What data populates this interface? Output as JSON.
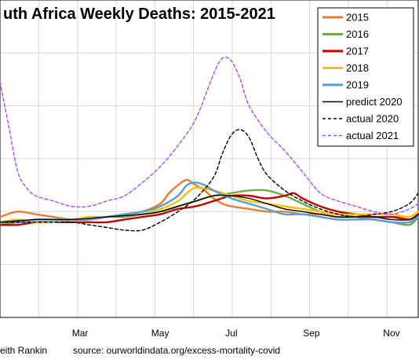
{
  "chart_data": {
    "type": "line",
    "title": "uth Africa Weekly Deaths: 2015-2021",
    "x_ticks": [
      "Mar",
      "May",
      "Jul",
      "Sep",
      "Nov"
    ],
    "x_tick_weeks": [
      9,
      18,
      26,
      35,
      44
    ],
    "xlim": [
      0,
      47
    ],
    "ylim": [
      0,
      12
    ],
    "grid": true,
    "legend_position": "top-right",
    "legend": [
      "2015",
      "2016",
      "2017",
      "2018",
      "2019",
      "predict 2020",
      "actual 2020",
      "actual 2021"
    ],
    "series": [
      {
        "name": "2015",
        "color": "#ED7D31",
        "style": "solid",
        "x": [
          0,
          2,
          4,
          6,
          8,
          10,
          12,
          14,
          16,
          18,
          19,
          20,
          21,
          22,
          23,
          24,
          25,
          26,
          28,
          30,
          32,
          34,
          36,
          38,
          40,
          42,
          44,
          46,
          47
        ],
        "y": [
          3.8,
          4.0,
          3.9,
          3.8,
          3.7,
          3.7,
          3.8,
          3.9,
          4.0,
          4.3,
          4.7,
          5.0,
          5.2,
          5.0,
          4.8,
          4.5,
          4.3,
          4.2,
          4.1,
          4.0,
          4.0,
          3.9,
          3.9,
          3.8,
          3.8,
          3.8,
          3.8,
          3.8,
          4.0
        ]
      },
      {
        "name": "2016",
        "color": "#70AD47",
        "style": "solid",
        "x": [
          0,
          2,
          4,
          6,
          8,
          10,
          12,
          14,
          16,
          18,
          20,
          22,
          24,
          26,
          28,
          30,
          32,
          34,
          36,
          38,
          40,
          42,
          44,
          46,
          47
        ],
        "y": [
          3.5,
          3.6,
          3.7,
          3.7,
          3.7,
          3.7,
          3.8,
          3.8,
          3.9,
          4.0,
          4.2,
          4.4,
          4.6,
          4.7,
          4.8,
          4.8,
          4.6,
          4.3,
          4.0,
          3.9,
          3.8,
          3.7,
          3.6,
          3.5,
          3.8
        ]
      },
      {
        "name": "2017",
        "color": "#C00000",
        "style": "solid",
        "x": [
          0,
          2,
          4,
          6,
          8,
          10,
          12,
          14,
          16,
          18,
          20,
          22,
          24,
          26,
          28,
          30,
          32,
          33,
          34,
          36,
          38,
          40,
          42,
          44,
          46,
          47
        ],
        "y": [
          3.5,
          3.5,
          3.6,
          3.6,
          3.6,
          3.6,
          3.6,
          3.7,
          3.8,
          3.9,
          4.1,
          4.2,
          4.4,
          4.6,
          4.6,
          4.5,
          4.6,
          4.7,
          4.5,
          4.2,
          4.0,
          3.9,
          3.8,
          3.8,
          3.7,
          3.9
        ]
      },
      {
        "name": "2018",
        "color": "#FFC000",
        "style": "solid",
        "x": [
          0,
          2,
          4,
          6,
          8,
          10,
          12,
          14,
          16,
          18,
          20,
          21,
          22,
          24,
          26,
          28,
          30,
          32,
          34,
          36,
          38,
          40,
          42,
          44,
          46,
          47
        ],
        "y": [
          3.6,
          3.7,
          3.6,
          3.6,
          3.7,
          3.8,
          3.8,
          3.9,
          4.0,
          4.1,
          4.4,
          4.7,
          4.9,
          4.8,
          4.6,
          4.4,
          4.3,
          4.2,
          4.1,
          4.0,
          3.9,
          3.9,
          3.9,
          3.9,
          3.8,
          4.0
        ]
      },
      {
        "name": "2019",
        "color": "#5B9BD5",
        "style": "solid",
        "x": [
          0,
          2,
          4,
          6,
          8,
          10,
          12,
          14,
          16,
          18,
          20,
          21,
          22,
          23,
          24,
          26,
          28,
          30,
          32,
          34,
          36,
          38,
          40,
          42,
          44,
          46,
          47
        ],
        "y": [
          3.6,
          3.6,
          3.7,
          3.7,
          3.7,
          3.7,
          3.8,
          3.9,
          4.0,
          4.2,
          4.6,
          5.0,
          5.1,
          5.0,
          4.8,
          4.5,
          4.3,
          4.1,
          3.9,
          3.9,
          3.8,
          3.7,
          3.7,
          3.7,
          3.6,
          3.6,
          3.8
        ]
      },
      {
        "name": "predict 2020",
        "color": "#000000",
        "style": "solid",
        "x": [
          0,
          4,
          8,
          12,
          16,
          18,
          20,
          22,
          24,
          26,
          28,
          30,
          32,
          34,
          36,
          38,
          40,
          42,
          44,
          46,
          47
        ],
        "y": [
          3.6,
          3.7,
          3.7,
          3.8,
          3.9,
          4.0,
          4.2,
          4.4,
          4.6,
          4.6,
          4.5,
          4.3,
          4.1,
          4.0,
          3.9,
          3.8,
          3.8,
          3.8,
          3.7,
          3.7,
          3.9
        ]
      },
      {
        "name": "actual 2020",
        "color": "#000000",
        "style": "dashed",
        "x": [
          0,
          4,
          8,
          10,
          12,
          14,
          16,
          18,
          20,
          22,
          24,
          25,
          26,
          27,
          28,
          29,
          30,
          32,
          34,
          36,
          38,
          40,
          42,
          44,
          46,
          47
        ],
        "y": [
          3.6,
          3.6,
          3.6,
          3.5,
          3.4,
          3.3,
          3.3,
          3.6,
          4.0,
          4.5,
          5.3,
          6.2,
          6.9,
          7.1,
          6.8,
          6.0,
          5.4,
          4.8,
          4.4,
          4.1,
          3.9,
          3.8,
          3.9,
          4.0,
          4.3,
          4.7
        ]
      },
      {
        "name": "actual 2021",
        "color": "#A64DFF",
        "style": "dashed",
        "x": [
          0,
          1,
          2,
          3,
          4,
          6,
          8,
          10,
          12,
          14,
          16,
          18,
          20,
          22,
          24,
          25,
          26,
          27,
          28,
          30,
          32,
          34,
          36,
          38,
          40,
          42,
          44,
          46,
          47
        ],
        "y": [
          8.9,
          7.2,
          5.5,
          4.9,
          4.6,
          4.4,
          4.2,
          4.2,
          4.4,
          4.6,
          5.1,
          5.7,
          6.5,
          7.5,
          9.2,
          9.8,
          9.7,
          9.0,
          8.0,
          7.0,
          6.3,
          5.5,
          4.7,
          4.4,
          4.2,
          4.0,
          3.9,
          4.1,
          4.3
        ]
      }
    ]
  },
  "footer": {
    "author": "eith Rankin",
    "source": "source:  ourworldindata.org/excess-mortality-covid"
  }
}
